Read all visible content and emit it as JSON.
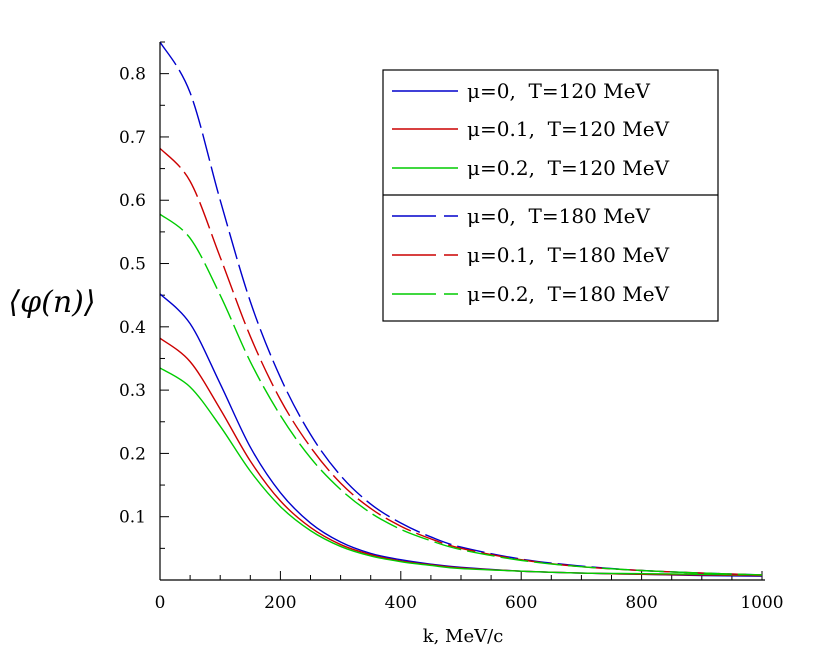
{
  "chart_data": {
    "type": "line",
    "xlabel": "k,  MeV/c",
    "ylabel": "⟨φ(n)⟩",
    "xlim": [
      0,
      1000
    ],
    "ylim": [
      0,
      0.85
    ],
    "x_ticks": [
      "0",
      "200",
      "400",
      "600",
      "800",
      "1000"
    ],
    "y_ticks": [
      "0.1",
      "0.2",
      "0.3",
      "0.4",
      "0.5",
      "0.6",
      "0.7",
      "0.8"
    ],
    "grid": false,
    "legend_position": "top-right",
    "x": [
      0,
      50,
      100,
      150,
      200,
      250,
      300,
      350,
      400,
      450,
      500,
      600,
      700,
      800,
      900,
      1000
    ],
    "series": [
      {
        "name": "μ=0,  T=120 MeV",
        "color": "#0000cc",
        "dash": "solid",
        "values": [
          0.452,
          0.405,
          0.31,
          0.21,
          0.138,
          0.09,
          0.06,
          0.042,
          0.032,
          0.025,
          0.02,
          0.014,
          0.011,
          0.009,
          0.007,
          0.006
        ]
      },
      {
        "name": "μ=0.1,  T=120 MeV",
        "color": "#cc0000",
        "dash": "solid",
        "values": [
          0.382,
          0.345,
          0.27,
          0.188,
          0.125,
          0.083,
          0.056,
          0.04,
          0.03,
          0.024,
          0.019,
          0.014,
          0.011,
          0.009,
          0.008,
          0.007
        ]
      },
      {
        "name": "μ=0.2,  T=120 MeV",
        "color": "#00cc00",
        "dash": "solid",
        "values": [
          0.335,
          0.305,
          0.243,
          0.172,
          0.116,
          0.078,
          0.053,
          0.038,
          0.029,
          0.023,
          0.018,
          0.014,
          0.011,
          0.01,
          0.009,
          0.008
        ]
      },
      {
        "name": "μ=0,  T=180 MeV",
        "color": "#0000cc",
        "dash": "dashed",
        "values": [
          0.85,
          0.77,
          0.6,
          0.44,
          0.32,
          0.23,
          0.165,
          0.12,
          0.09,
          0.068,
          0.052,
          0.033,
          0.022,
          0.015,
          0.011,
          0.008
        ]
      },
      {
        "name": "μ=0.1,  T=180 MeV",
        "color": "#cc0000",
        "dash": "dashed",
        "values": [
          0.682,
          0.63,
          0.51,
          0.385,
          0.285,
          0.21,
          0.153,
          0.113,
          0.085,
          0.065,
          0.05,
          0.032,
          0.021,
          0.015,
          0.011,
          0.008
        ]
      },
      {
        "name": "μ=0.2,  T=180 MeV",
        "color": "#00cc00",
        "dash": "dashed",
        "values": [
          0.578,
          0.54,
          0.45,
          0.345,
          0.26,
          0.193,
          0.143,
          0.106,
          0.08,
          0.062,
          0.048,
          0.031,
          0.021,
          0.015,
          0.011,
          0.008
        ]
      }
    ]
  }
}
